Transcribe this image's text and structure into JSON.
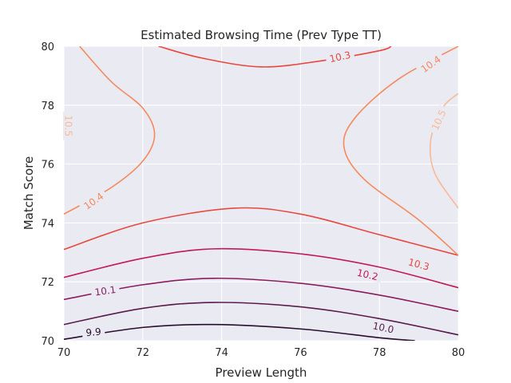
{
  "chart_data": {
    "type": "contour",
    "title": "Estimated Browsing Time (Prev Type TT)",
    "xlabel": "Preview Length",
    "ylabel": "Match Score",
    "xlim": [
      70,
      80
    ],
    "ylim": [
      70,
      80
    ],
    "x_ticks": [
      "70",
      "72",
      "74",
      "76",
      "78",
      "80"
    ],
    "y_ticks": [
      "70",
      "72",
      "74",
      "76",
      "78",
      "80"
    ],
    "grid": true,
    "background": "#eaeaf2",
    "levels": [
      {
        "value": 9.9,
        "label": "9.9",
        "color": "#2b0d2f",
        "paths": [
          [
            [
              70,
              70.05
            ],
            [
              72,
              70.45
            ],
            [
              73.8,
              70.55
            ],
            [
              76,
              70.4
            ],
            [
              78,
              70.1
            ],
            [
              78.9,
              70
            ]
          ]
        ]
      },
      {
        "value": 10.0,
        "label": "10.0",
        "color": "#5a1a4e",
        "paths": [
          [
            [
              70,
              70.55
            ],
            [
              72,
              71.1
            ],
            [
              73.8,
              71.3
            ],
            [
              76,
              71.15
            ],
            [
              78,
              70.75
            ],
            [
              80,
              70.2
            ]
          ]
        ]
      },
      {
        "value": 10.1,
        "label": "10.1",
        "color": "#8c1c5f",
        "paths": [
          [
            [
              70,
              71.4
            ],
            [
              72,
              71.9
            ],
            [
              73.8,
              72.12
            ],
            [
              76,
              71.95
            ],
            [
              78,
              71.55
            ],
            [
              80,
              71.0
            ]
          ]
        ]
      },
      {
        "value": 10.2,
        "label": "10.2",
        "color": "#c21a55",
        "paths": [
          [
            [
              70,
              72.15
            ],
            [
              72,
              72.8
            ],
            [
              73.8,
              73.12
            ],
            [
              76,
              72.95
            ],
            [
              78,
              72.5
            ],
            [
              80,
              71.8
            ]
          ]
        ]
      },
      {
        "value": 10.3,
        "label": "10.3",
        "color": "#e8483f",
        "paths": [
          [
            [
              70,
              73.1
            ],
            [
              72,
              74.0
            ],
            [
              74.3,
              74.5
            ],
            [
              76,
              74.3
            ],
            [
              78,
              73.6
            ],
            [
              80,
              72.9
            ]
          ],
          [
            [
              72.4,
              80
            ],
            [
              73.5,
              79.6
            ],
            [
              75,
              79.3
            ],
            [
              76.5,
              79.5
            ],
            [
              78,
              79.85
            ],
            [
              78.3,
              80
            ]
          ]
        ]
      },
      {
        "value": 10.4,
        "label": "10.4",
        "color": "#f58a5d",
        "paths": [
          [
            [
              70,
              74.3
            ],
            [
              71.2,
              75.2
            ],
            [
              72,
              76.1
            ],
            [
              72.3,
              77
            ],
            [
              72,
              77.9
            ],
            [
              71.2,
              78.8
            ],
            [
              70.4,
              80
            ]
          ],
          [
            [
              80,
              72.9
            ],
            [
              79,
              74.1
            ],
            [
              77.6,
              75.5
            ],
            [
              77.1,
              76.6
            ],
            [
              77.4,
              77.6
            ],
            [
              78.5,
              78.9
            ],
            [
              80,
              80
            ]
          ]
        ]
      },
      {
        "value": 10.5,
        "label": "10.5",
        "color": "#f9b996",
        "paths": [
          [
            [
              80,
              74.5
            ],
            [
              79.4,
              75.7
            ],
            [
              79.3,
              76.8
            ],
            [
              79.6,
              77.9
            ],
            [
              80,
              78.4
            ]
          ],
          [
            [
              70,
              76.9
            ],
            [
              70.15,
              77.05
            ],
            [
              70,
              77.25
            ]
          ]
        ]
      }
    ],
    "contour_labels": [
      {
        "text": "9.9",
        "x": 70.75,
        "y": 70.3,
        "level": 9.9,
        "rotation": -5
      },
      {
        "text": "10.0",
        "x": 78.1,
        "y": 70.45,
        "level": 10.0,
        "rotation": 12
      },
      {
        "text": "10.1",
        "x": 71.05,
        "y": 71.7,
        "level": 10.1,
        "rotation": -8
      },
      {
        "text": "10.2",
        "x": 77.7,
        "y": 72.25,
        "level": 10.2,
        "rotation": 13
      },
      {
        "text": "10.3",
        "x": 79.0,
        "y": 72.6,
        "level": 10.3,
        "rotation": 15
      },
      {
        "text": "10.3",
        "x": 77.0,
        "y": 79.65,
        "level": 10.3,
        "rotation": -12
      },
      {
        "text": "10.4",
        "x": 70.75,
        "y": 74.75,
        "level": 10.4,
        "rotation": -35
      },
      {
        "text": "10.4",
        "x": 79.3,
        "y": 79.4,
        "level": 10.4,
        "rotation": -35
      },
      {
        "text": "10.5",
        "x": 79.5,
        "y": 77.5,
        "level": 10.5,
        "rotation": -65
      },
      {
        "text": "10.5",
        "x": 70.12,
        "y": 77.3,
        "level": 10.5,
        "rotation": 90
      }
    ]
  }
}
